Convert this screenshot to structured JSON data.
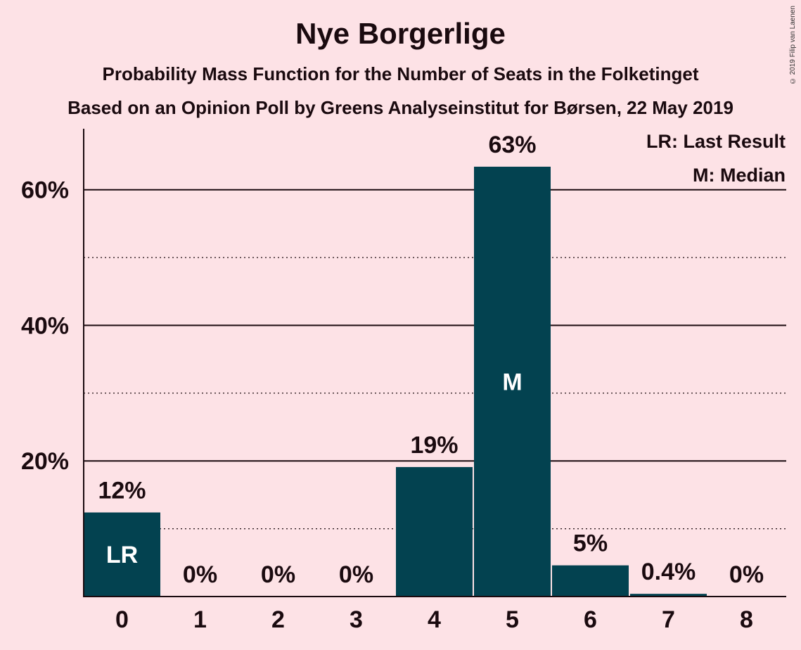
{
  "chart_data": {
    "type": "bar",
    "title": "Nye Borgerlige",
    "subtitle": "Probability Mass Function for the Number of Seats in the Folketinget",
    "subtitle2": "Based on an Opinion Poll by Greens Analyseinstitut for Børsen, 22 May 2019",
    "categories": [
      "0",
      "1",
      "2",
      "3",
      "4",
      "5",
      "6",
      "7",
      "8"
    ],
    "values": [
      12.4,
      0,
      0,
      0,
      19.1,
      63.4,
      4.6,
      0.4,
      0
    ],
    "data_labels": [
      "12%",
      "0%",
      "0%",
      "0%",
      "19%",
      "63%",
      "5%",
      "0.4%",
      "0%"
    ],
    "bar_markers": [
      "LR",
      "",
      "",
      "",
      "",
      "M",
      "",
      "",
      ""
    ],
    "ylim": [
      0,
      69
    ],
    "yticks": [
      {
        "value": 20,
        "label": "20%"
      },
      {
        "value": 40,
        "label": "40%"
      },
      {
        "value": 60,
        "label": "60%"
      }
    ],
    "minor_gridlines": [
      10,
      30,
      50
    ],
    "legend": [
      "LR: Last Result",
      "M: Median"
    ],
    "legend_position": "top-right",
    "grid": true,
    "bar_color": "#034250",
    "background_color": "#fde2e6"
  },
  "copyright": "© 2019 Filip van Laenen"
}
